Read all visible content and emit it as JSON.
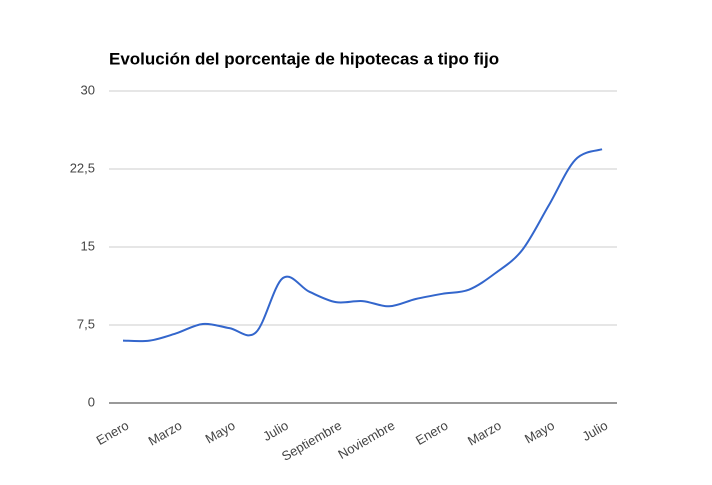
{
  "chart_data": {
    "type": "line",
    "title": "Evolución del porcentaje de hipotecas a tipo fijo",
    "categories": [
      "Enero",
      null,
      "Marzo",
      null,
      "Mayo",
      null,
      "Julio",
      null,
      "Septiembre",
      null,
      "Noviembre",
      null,
      "Enero",
      null,
      "Marzo",
      null,
      "Mayo",
      null,
      "Julio"
    ],
    "series": [
      {
        "name": "Hipotecas a tipo fijo",
        "color": "#3366cc",
        "values": [
          6.0,
          6.0,
          6.7,
          7.6,
          7.2,
          6.8,
          12.0,
          10.7,
          9.7,
          9.8,
          9.3,
          10.0,
          10.5,
          10.9,
          12.5,
          14.7,
          19.0,
          23.4,
          24.4
        ]
      }
    ],
    "ylim": [
      0,
      30
    ],
    "yticks": [
      0,
      {
        "value": 7.5,
        "label": "7,5"
      },
      15,
      {
        "value": 22.5,
        "label": "22,5"
      },
      30
    ],
    "grid": true
  }
}
